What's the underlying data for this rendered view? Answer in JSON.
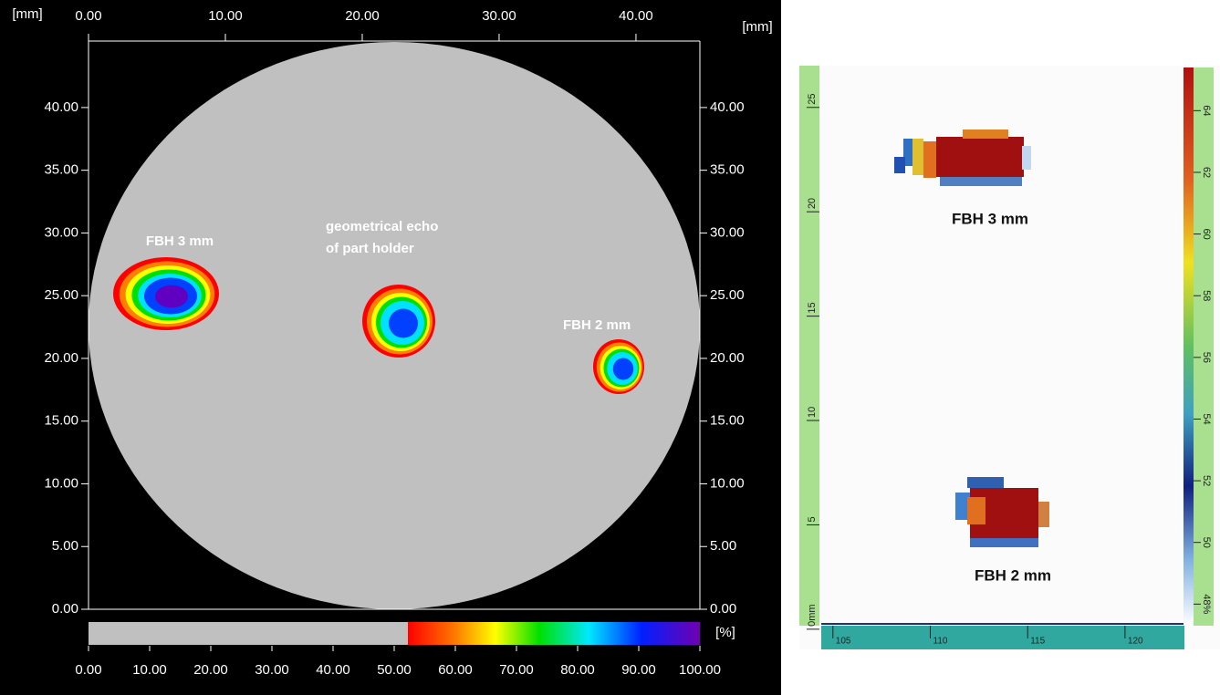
{
  "chart_data": [
    {
      "type": "heatmap",
      "axis_units": [
        "[mm]",
        "[mm]"
      ],
      "xlim": [
        0,
        44.67
      ],
      "ylim": [
        0,
        45.3
      ],
      "xticks": [
        {
          "value": 0,
          "label": "0.00"
        },
        {
          "value": 10,
          "label": "10.00"
        },
        {
          "value": 20,
          "label": "20.00"
        },
        {
          "value": 30,
          "label": "30.00"
        },
        {
          "value": 40,
          "label": "40.00"
        }
      ],
      "yticks": [
        {
          "value": 0,
          "label": "0.00"
        },
        {
          "value": 5,
          "label": "5.00"
        },
        {
          "value": 10,
          "label": "10.00"
        },
        {
          "value": 15,
          "label": "15.00"
        },
        {
          "value": 20,
          "label": "20.00"
        },
        {
          "value": 25,
          "label": "25.00"
        },
        {
          "value": 30,
          "label": "30.00"
        },
        {
          "value": 35,
          "label": "35.00"
        },
        {
          "value": 40,
          "label": "40.00"
        }
      ],
      "colorbar": {
        "label": "[%]",
        "lim": [
          0,
          100
        ],
        "ticks": [
          {
            "value": 0,
            "label": "0.00"
          },
          {
            "value": 10,
            "label": "10.00"
          },
          {
            "value": 20,
            "label": "20.00"
          },
          {
            "value": 30,
            "label": "30.00"
          },
          {
            "value": 40,
            "label": "40.00"
          },
          {
            "value": 50,
            "label": "50.00"
          },
          {
            "value": 60,
            "label": "60.00"
          },
          {
            "value": 70,
            "label": "70.00"
          },
          {
            "value": 80,
            "label": "80.00"
          },
          {
            "value": 90,
            "label": "90.00"
          },
          {
            "value": 100,
            "label": "100.00"
          }
        ]
      },
      "annotations": [
        "FBH 3 mm",
        "geometrical echo",
        "of part holder",
        "FBH 2 mm"
      ]
    },
    {
      "type": "heatmap",
      "xlim": [
        104.4,
        123.05
      ],
      "ylim": [
        0.3,
        27
      ],
      "xticks": [
        105,
        110,
        115,
        120
      ],
      "yticks": [
        {
          "value": 0,
          "label": "0mm"
        },
        5,
        10,
        15,
        20,
        25
      ],
      "colorbar": {
        "lim": [
          47.3,
          65.4
        ],
        "ticks": [
          {
            "value": 48,
            "label": "48%"
          },
          50,
          52,
          54,
          56,
          58,
          60,
          62,
          64
        ]
      },
      "annotations": [
        "FBH 3 mm",
        "FBH 2 mm"
      ]
    }
  ]
}
